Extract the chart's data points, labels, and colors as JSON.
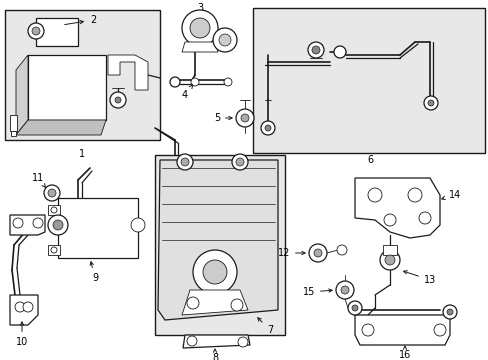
{
  "figsize": [
    4.89,
    3.6
  ],
  "dpi": 100,
  "bg": "#ffffff",
  "lc": "#1a1a1a",
  "fill_box": "#e8e8e8",
  "fill_white": "#ffffff"
}
